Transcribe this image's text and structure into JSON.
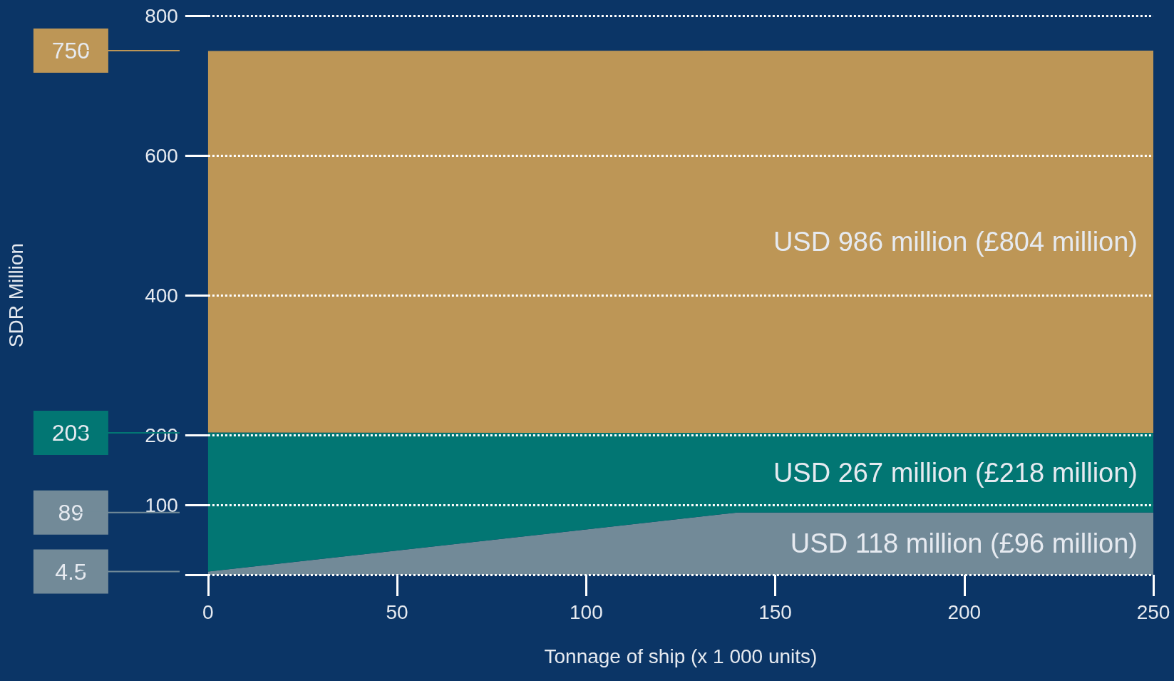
{
  "chart_data": {
    "type": "area",
    "stacked": true,
    "xlabel": "Tonnage of ship (x 1 000 units)",
    "y2label": "SDR Million",
    "x": [
      0,
      140,
      250
    ],
    "series": [
      {
        "color": "#728a98",
        "values": [
          4.5,
          89,
          89
        ]
      },
      {
        "color": "#027673",
        "values": [
          199,
          114,
          114
        ]
      },
      {
        "color": "#bd9656",
        "values": [
          546,
          547,
          547
        ]
      }
    ],
    "xlim": [
      0,
      250
    ],
    "xticks": [
      0,
      50,
      100,
      150,
      200,
      250
    ],
    "ylim": [
      0,
      800
    ],
    "yticks": [
      {
        "value": 0,
        "label": null
      },
      100,
      200,
      400,
      600,
      800
    ],
    "grid": "y",
    "y2lim": [
      0,
      800
    ],
    "y2ticks": [
      4.5,
      89,
      203,
      750
    ],
    "annotations": [
      "USD 986 million (£804 million)",
      "USD 267 million (£218 million)",
      "USD 118 million (£96 million)"
    ]
  }
}
